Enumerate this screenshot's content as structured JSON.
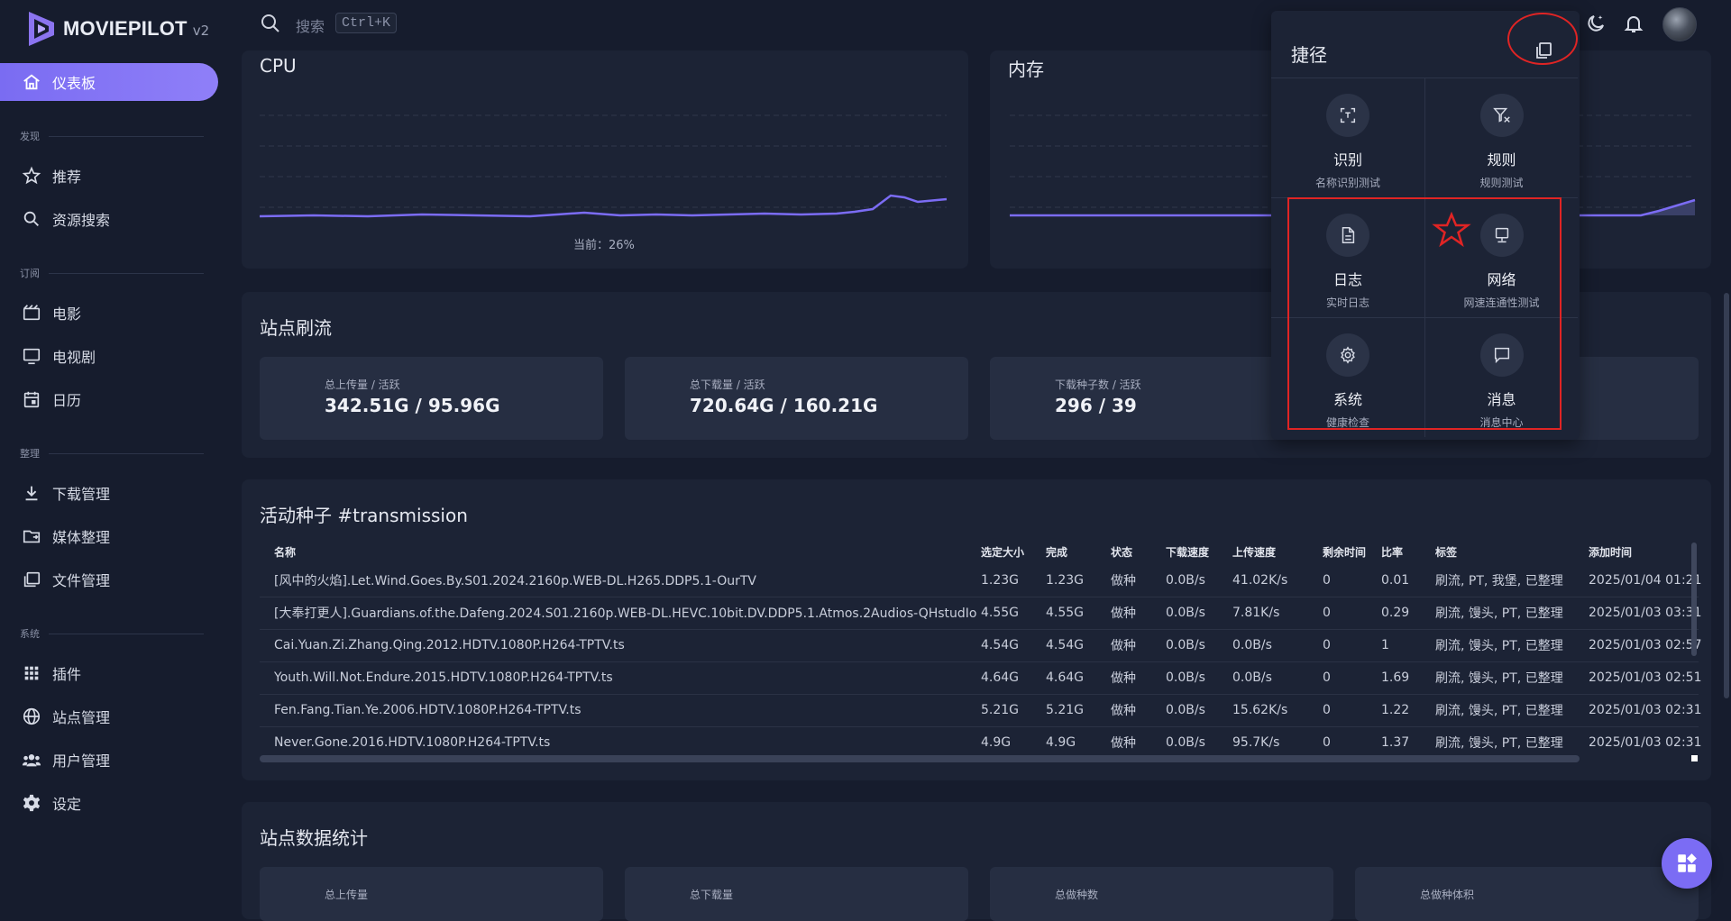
{
  "brand": {
    "name": "MOVIEPILOT",
    "version": "v2"
  },
  "search": {
    "placeholder": "搜索",
    "shortcut": "Ctrl+K"
  },
  "sidebar": {
    "dashboard": "仪表板",
    "sections": {
      "discover": "发现",
      "subscribe": "订阅",
      "organize": "整理",
      "system": "系统"
    },
    "items": {
      "recommend": "推荐",
      "resource_search": "资源搜索",
      "movies": "电影",
      "tv": "电视剧",
      "calendar": "日历",
      "downloads": "下载管理",
      "media": "媒体整理",
      "files": "文件管理",
      "plugins": "插件",
      "sites": "站点管理",
      "users": "用户管理",
      "settings": "设定"
    }
  },
  "cpu": {
    "title": "CPU",
    "current": "当前：26%"
  },
  "memory": {
    "title": "内存"
  },
  "brush": {
    "title": "站点刷流",
    "stats": [
      {
        "label": "总上传量 / 活跃",
        "value": "342.51G / 95.96G"
      },
      {
        "label": "总下载量 / 活跃",
        "value": "720.64G / 160.21G"
      },
      {
        "label": "下载种子数 / 活跃",
        "value": "296 / 39"
      }
    ]
  },
  "torrents": {
    "title": "活动种子 #transmission",
    "columns": [
      "名称",
      "选定大小",
      "完成",
      "状态",
      "下载速度",
      "上传速度",
      "剩余时间",
      "比率",
      "标签",
      "添加时间"
    ],
    "rows": [
      [
        "[风中的火焰].Let.Wind.Goes.By.S01.2024.2160p.WEB-DL.H265.DDP5.1-OurTV",
        "1.23G",
        "1.23G",
        "做种",
        "0.0B/s",
        "41.02K/s",
        "0",
        "0.01",
        "刷流, PT, 我堡, 已整理",
        "2025/01/04 01:21"
      ],
      [
        "[大奉打更人].Guardians.of.the.Dafeng.2024.S01.2160p.WEB-DL.HEVC.10bit.DV.DDP5.1.Atmos.2Audios-QHstudIo",
        "4.55G",
        "4.55G",
        "做种",
        "0.0B/s",
        "7.81K/s",
        "0",
        "0.29",
        "刷流, 馒头, PT, 已整理",
        "2025/01/03 03:31"
      ],
      [
        "Cai.Yuan.Zi.Zhang.Qing.2012.HDTV.1080P.H264-TPTV.ts",
        "4.54G",
        "4.54G",
        "做种",
        "0.0B/s",
        "0.0B/s",
        "0",
        "1",
        "刷流, 馒头, PT, 已整理",
        "2025/01/03 02:57"
      ],
      [
        "Youth.Will.Not.Endure.2015.HDTV.1080P.H264-TPTV.ts",
        "4.64G",
        "4.64G",
        "做种",
        "0.0B/s",
        "0.0B/s",
        "0",
        "1.69",
        "刷流, 馒头, PT, 已整理",
        "2025/01/03 02:51"
      ],
      [
        "Fen.Fang.Tian.Ye.2006.HDTV.1080P.H264-TPTV.ts",
        "5.21G",
        "5.21G",
        "做种",
        "0.0B/s",
        "15.62K/s",
        "0",
        "1.22",
        "刷流, 馒头, PT, 已整理",
        "2025/01/03 02:31"
      ],
      [
        "Never.Gone.2016.HDTV.1080P.H264-TPTV.ts",
        "4.9G",
        "4.9G",
        "做种",
        "0.0B/s",
        "95.7K/s",
        "0",
        "1.37",
        "刷流, 馒头, PT, 已整理",
        "2025/01/03 02:31"
      ]
    ]
  },
  "site_stats": {
    "title": "站点数据统计",
    "labels": [
      "总上传量",
      "总下载量",
      "总做种数",
      "总做种体积"
    ]
  },
  "shortcuts": {
    "title": "捷径",
    "tiles": [
      {
        "title": "识别",
        "sub": "名称识别测试"
      },
      {
        "title": "规则",
        "sub": "规则测试"
      },
      {
        "title": "日志",
        "sub": "实时日志"
      },
      {
        "title": "网络",
        "sub": "网速连通性测试"
      },
      {
        "title": "系统",
        "sub": "健康检查"
      },
      {
        "title": "消息",
        "sub": "消息中心"
      }
    ]
  },
  "colors": {
    "accent": "#7b6cf4",
    "background": "#161c2d",
    "card": "#1c2335",
    "highlight": "#e02424"
  },
  "icons": {
    "top": [
      "search-icon",
      "theme-moon-icon",
      "notification-bell-icon"
    ],
    "shortcuts": [
      "scan-icon",
      "filter-icon",
      "log-file-icon",
      "monitor-icon",
      "gear-icon",
      "message-icon"
    ]
  }
}
